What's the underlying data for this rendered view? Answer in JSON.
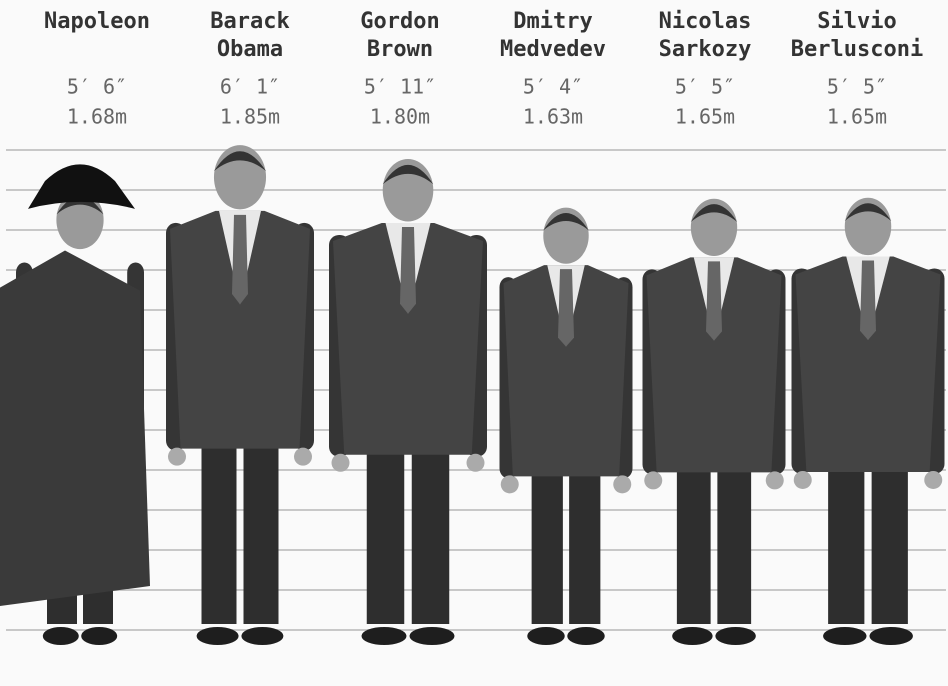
{
  "people": [
    {
      "name": [
        "Napoleon"
      ],
      "imperial": "5′ 6″",
      "metric": "1.68m"
    },
    {
      "name": [
        "Barack",
        "Obama"
      ],
      "imperial": "6′ 1″",
      "metric": "1.85m"
    },
    {
      "name": [
        "Gordon",
        "Brown"
      ],
      "imperial": "5′ 11″",
      "metric": "1.80m"
    },
    {
      "name": [
        "Dmitry",
        "Medvedev"
      ],
      "imperial": "5′ 4″",
      "metric": "1.63m"
    },
    {
      "name": [
        "Nicolas",
        "Sarkozy"
      ],
      "imperial": "5′ 5″",
      "metric": "1.65m"
    },
    {
      "name": [
        "Silvio",
        "Berlusconi"
      ],
      "imperial": "5′ 5″",
      "metric": "1.65m"
    }
  ]
}
